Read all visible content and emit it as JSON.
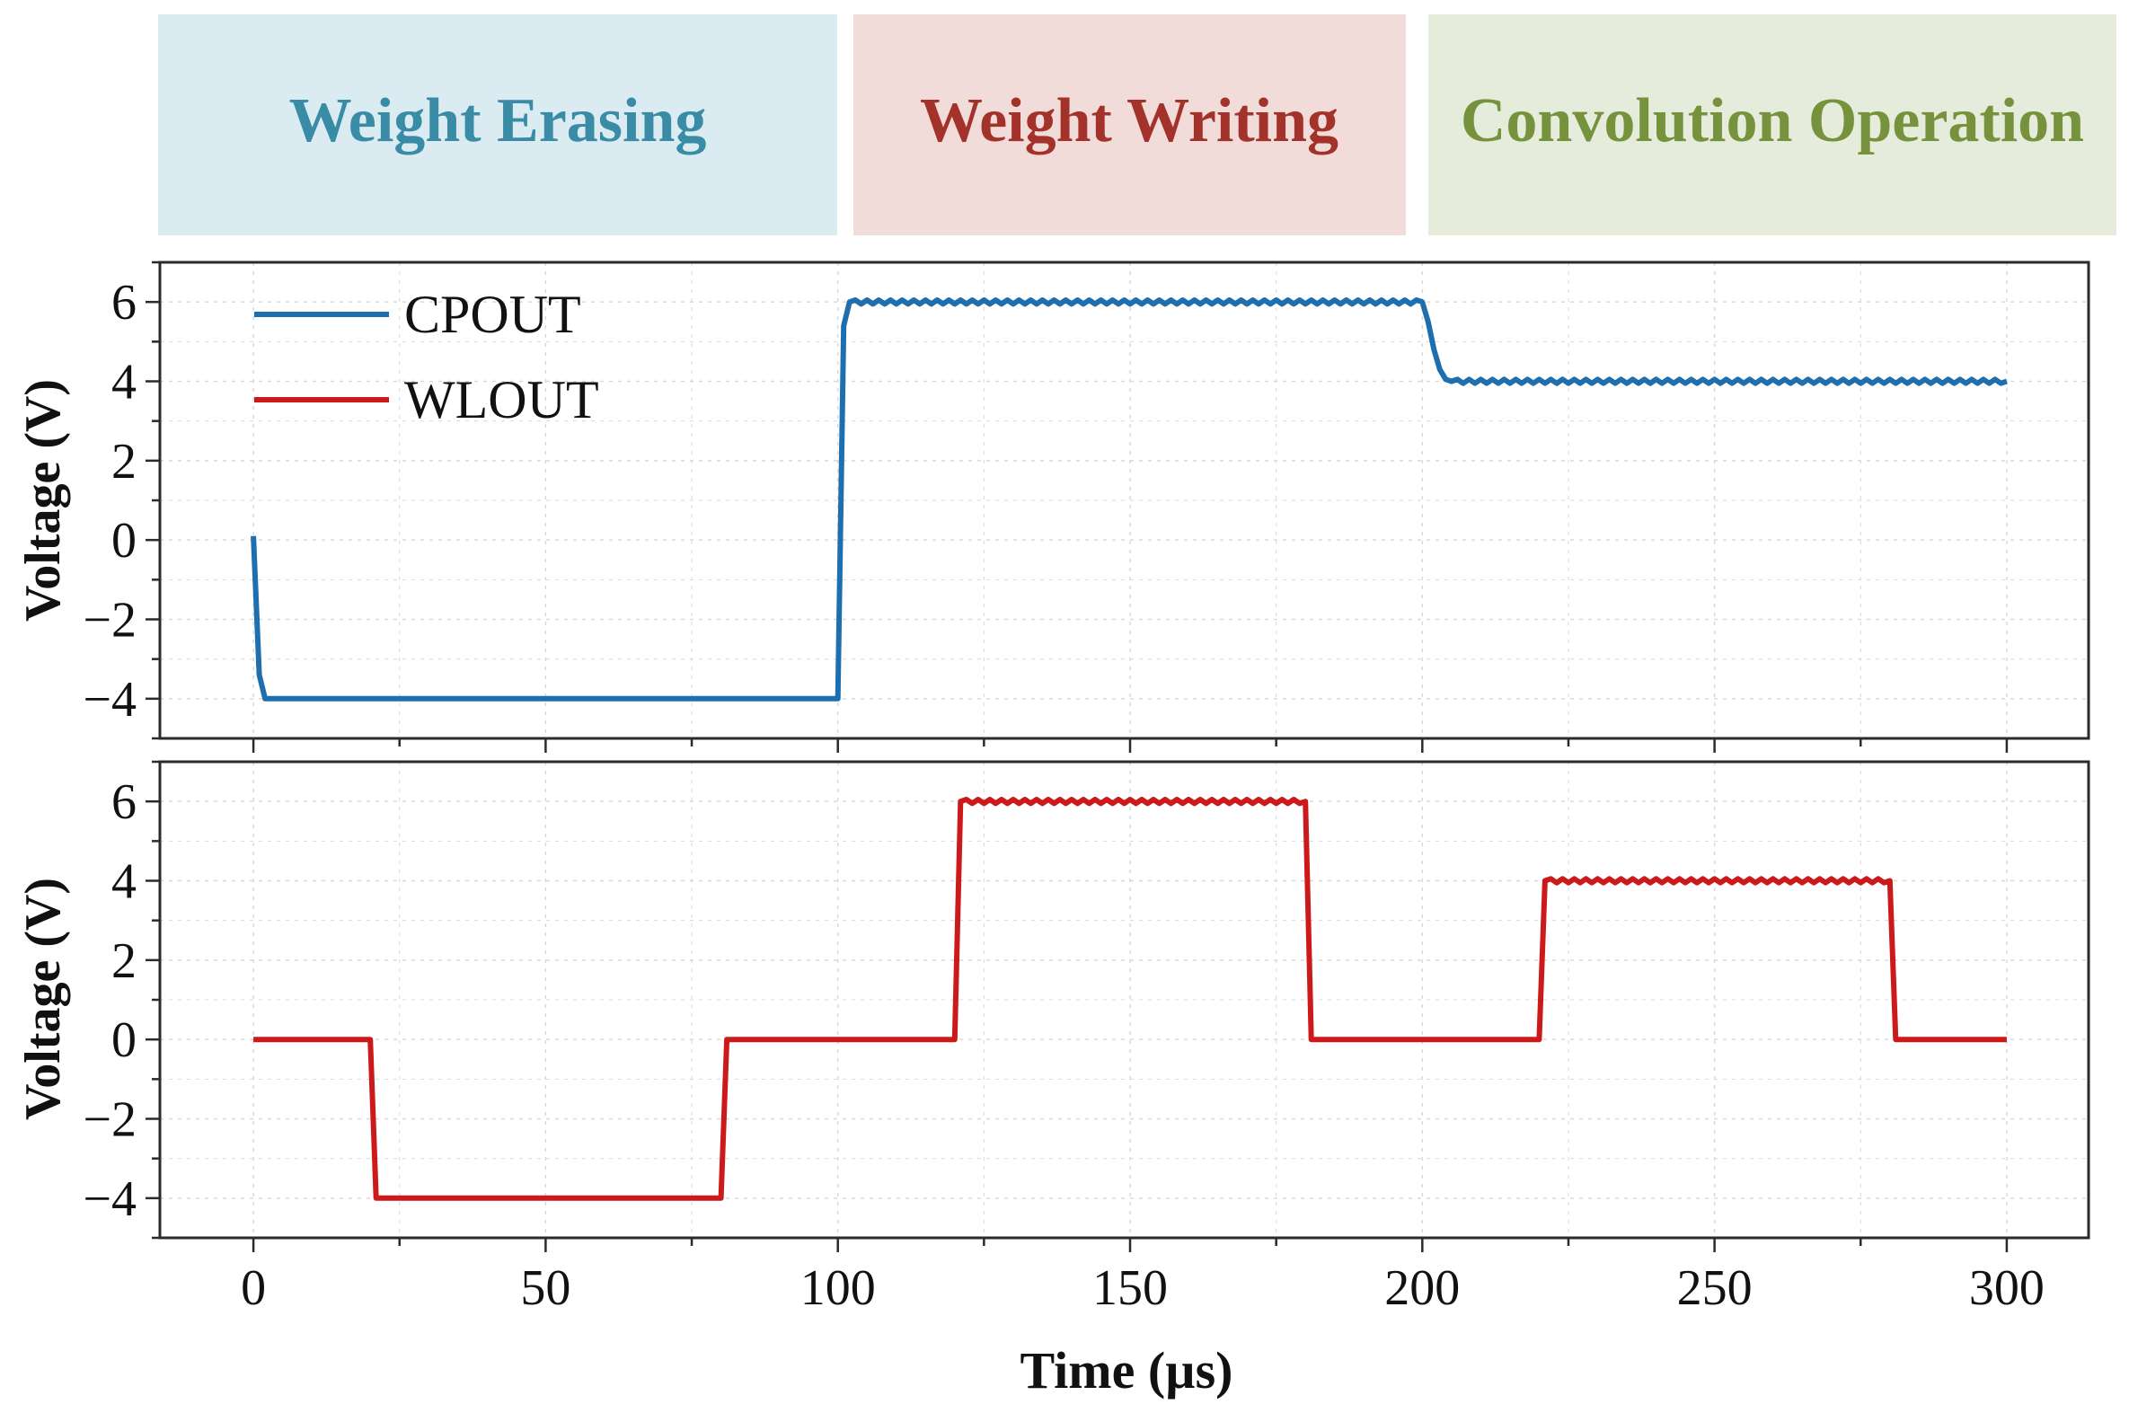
{
  "phases": [
    {
      "label": "Weight Erasing",
      "bg": "#daecf2",
      "color": "#3a8ca6",
      "start": 0,
      "end": 100
    },
    {
      "label": "Weight Writing",
      "bg": "#f2dcda",
      "color": "#a3322a",
      "start": 100,
      "end": 200
    },
    {
      "label": "Convolution Operation",
      "bg": "#e6ecdb",
      "color": "#76923c",
      "start": 200,
      "end": 300
    }
  ],
  "colors": {
    "cpout": "#1f6fae",
    "wlout": "#cc1a1a",
    "axis": "#2b2b2b",
    "grid": "#d9d9d9"
  },
  "chart_data": [
    {
      "type": "line",
      "name": "top-panel",
      "xlabel": "",
      "ylabel": "Voltage (V)",
      "xlim": [
        -16,
        314
      ],
      "ylim": [
        -5,
        7
      ],
      "yticks": [
        6,
        4,
        2,
        0,
        -2,
        -4
      ],
      "ytick_labels": [
        "6",
        "4",
        "2",
        "0",
        "−2",
        "−4"
      ],
      "xticks": [
        0,
        50,
        100,
        150,
        200,
        250,
        300
      ],
      "grid": true,
      "legend": {
        "position": "top-left",
        "entries": [
          "CPOUT",
          "WLOUT"
        ]
      },
      "series": [
        {
          "name": "CPOUT",
          "x": [
            0,
            1,
            2,
            100,
            101,
            102,
            200,
            201,
            202,
            203,
            204,
            205,
            300
          ],
          "y": [
            0.1,
            -3.4,
            -4,
            -4,
            5.4,
            6,
            6,
            5.5,
            4.8,
            4.3,
            4.05,
            4,
            4
          ],
          "ripple": [
            [
              102,
              200,
              6
            ],
            [
              205,
              300,
              4
            ]
          ]
        }
      ]
    },
    {
      "type": "line",
      "name": "bottom-panel",
      "xlabel": "Time (µs)",
      "ylabel": "Voltage (V)",
      "xlim": [
        -16,
        314
      ],
      "ylim": [
        -5,
        7
      ],
      "yticks": [
        6,
        4,
        2,
        0,
        -2,
        -4
      ],
      "ytick_labels": [
        "6",
        "4",
        "2",
        "0",
        "−2",
        "−4"
      ],
      "xticks": [
        0,
        50,
        100,
        150,
        200,
        250,
        300
      ],
      "xtick_labels": [
        "0",
        "50",
        "100",
        "150",
        "200",
        "250",
        "300"
      ],
      "grid": true,
      "series": [
        {
          "name": "WLOUT",
          "x": [
            0,
            20,
            21,
            80,
            81,
            120,
            121,
            180,
            181,
            220,
            221,
            280,
            281,
            300
          ],
          "y": [
            0,
            0,
            -4,
            -4,
            0,
            0,
            6,
            6,
            0,
            0,
            4,
            4,
            0,
            0
          ],
          "ripple": [
            [
              121,
              180,
              6
            ],
            [
              221,
              280,
              4
            ]
          ]
        }
      ]
    }
  ]
}
